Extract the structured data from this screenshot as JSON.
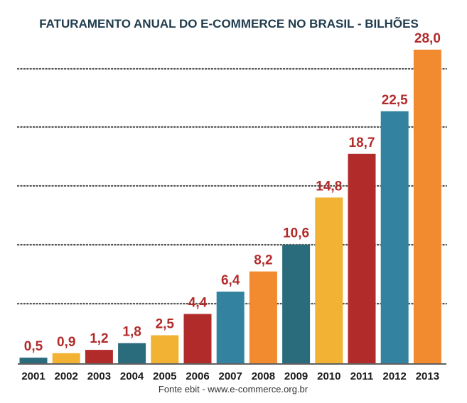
{
  "chart_data": {
    "type": "bar",
    "title": "FATURAMENTO ANUAL DO E-COMMERCE NO BRASIL - BILHÕES",
    "xlabel": "",
    "ylabel": "",
    "categories": [
      "2001",
      "2002",
      "2003",
      "2004",
      "2005",
      "2006",
      "2007",
      "2008",
      "2009",
      "2010",
      "2011",
      "2012",
      "2013"
    ],
    "values": [
      0.5,
      0.9,
      1.2,
      1.8,
      2.5,
      4.4,
      6.4,
      8.2,
      10.6,
      14.8,
      18.7,
      22.5,
      28.0
    ],
    "value_labels": [
      "0,5",
      "0,9",
      "1,2",
      "1,8",
      "2,5",
      "4,4",
      "6,4",
      "8,2",
      "10,6",
      "14,8",
      "18,7",
      "22,5",
      "28,0"
    ],
    "bar_colors": [
      "#2a6b7c",
      "#f2b233",
      "#b22b2b",
      "#2a6b7c",
      "#f2b233",
      "#b22b2b",
      "#3383a0",
      "#f28a30",
      "#2a6b7c",
      "#f2b233",
      "#b22b2b",
      "#3383a0",
      "#f28a30"
    ],
    "ylim": [
      0,
      28.0
    ],
    "grid": true,
    "legend": "none",
    "label_color": "#b22b2b",
    "title_color": "#1f3b4d"
  },
  "source": "Fonte ebit - www.e-commerce.org.br"
}
